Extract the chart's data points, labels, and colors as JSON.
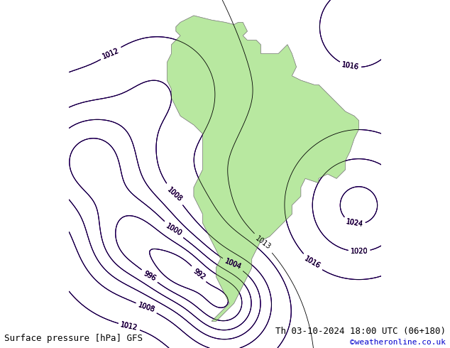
{
  "title_left": "Surface pressure [hPa] GFS",
  "title_right": "Th 03-10-2024 18:00 UTC (06+180)",
  "credit": "©weatheronline.co.uk",
  "bg_color": "#ffffff",
  "map_bg": "#ffffff",
  "land_color": "#b8e8a0",
  "ocean_color": "#ffffff",
  "border_color": "#888888",
  "isobar_blue_color": "#0000ff",
  "isobar_red_color": "#ff0000",
  "isobar_black_color": "#000000",
  "label_color_blue": "#0000ff",
  "label_color_red": "#ff0000",
  "label_color_black": "#000000",
  "font_size_labels": 7,
  "font_size_bottom": 9,
  "credit_color": "#0000cc"
}
